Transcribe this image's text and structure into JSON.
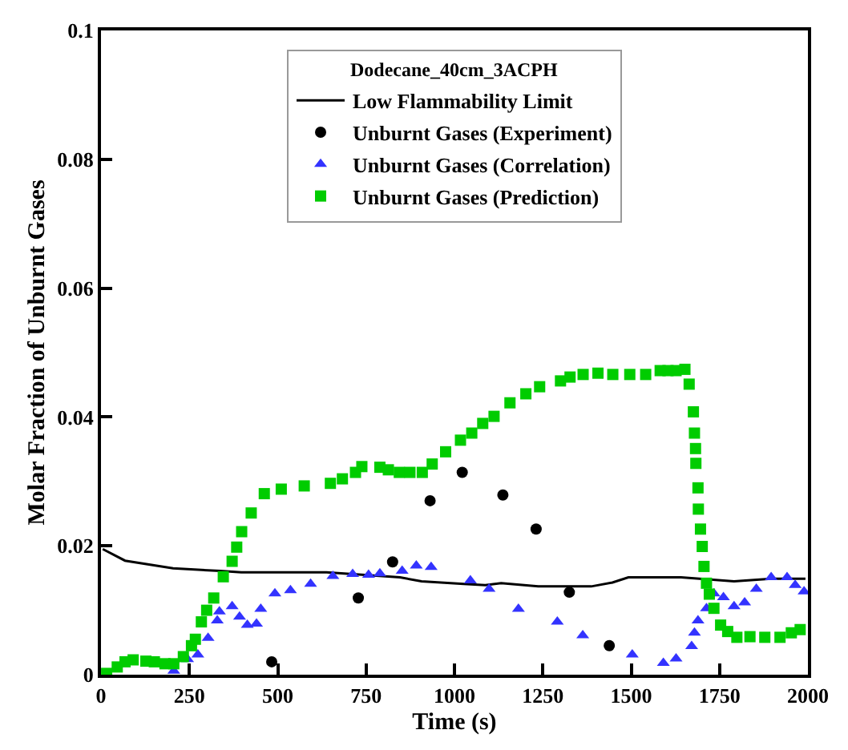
{
  "chart_data": {
    "type": "scatter",
    "xlabel": "Time (s)",
    "ylabel": "Molar Fraction of Unburnt Gases",
    "legend_title": "Dodecane_40cm_3ACPH",
    "xlim": [
      0,
      2000
    ],
    "xticks": [
      0,
      250,
      500,
      750,
      1000,
      1250,
      1500,
      1750,
      2000
    ],
    "ylim": [
      0,
      0.1
    ],
    "yticks": [
      0,
      0.02,
      0.04,
      0.06,
      0.08,
      0.1
    ],
    "grid": false,
    "legend": "top",
    "series": [
      {
        "name": "Low Flammability Limit",
        "type": "line",
        "marker": "none",
        "line_style": "solid",
        "color": "#000000",
        "x": [
          5,
          68,
          204,
          338,
          397,
          638,
          846,
          907,
          1026,
          1087,
          1132,
          1237,
          1387,
          1447,
          1492,
          1641,
          1791,
          1896,
          1993
        ],
        "values": [
          0.0195,
          0.0177,
          0.0165,
          0.0161,
          0.0159,
          0.0159,
          0.0151,
          0.0145,
          0.0141,
          0.0139,
          0.0142,
          0.0137,
          0.0137,
          0.0143,
          0.0151,
          0.0151,
          0.0145,
          0.0149,
          0.0149
        ]
      },
      {
        "name": "Unburnt Gases (Experiment)",
        "marker": "circle",
        "color": "#000000",
        "x": [
          483,
          728,
          825,
          931,
          1022,
          1137,
          1231,
          1325,
          1438
        ],
        "values": [
          0.002,
          0.0119,
          0.0175,
          0.027,
          0.0314,
          0.0279,
          0.0226,
          0.0128,
          0.0045
        ]
      },
      {
        "name": "Unburnt Gases (Correlation)",
        "marker": "triangle",
        "color": "#3333ff",
        "x": [
          206,
          245,
          274,
          303,
          329,
          335,
          371,
          392,
          414,
          440,
          452,
          492,
          536,
          593,
          656,
          712,
          757,
          789,
          852,
          892,
          934,
          1045,
          1098,
          1181,
          1291,
          1363,
          1503,
          1591,
          1627,
          1671,
          1679,
          1689,
          1713,
          1734,
          1761,
          1791,
          1821,
          1854,
          1896,
          1941,
          1964,
          1989
        ],
        "values": [
          0.0006,
          0.0024,
          0.0031,
          0.0057,
          0.0084,
          0.0098,
          0.0106,
          0.009,
          0.0077,
          0.0079,
          0.0102,
          0.0126,
          0.0131,
          0.0141,
          0.0153,
          0.0156,
          0.0155,
          0.0157,
          0.0161,
          0.0169,
          0.0167,
          0.0146,
          0.0133,
          0.0102,
          0.0082,
          0.0061,
          0.0031,
          0.0018,
          0.0025,
          0.0044,
          0.0065,
          0.0084,
          0.0103,
          0.0126,
          0.012,
          0.0106,
          0.0112,
          0.0133,
          0.0151,
          0.0151,
          0.0139,
          0.0129
        ]
      },
      {
        "name": "Unburnt Gases (Prediction)",
        "marker": "square",
        "color": "#00cc00",
        "x": [
          16,
          46,
          68,
          91,
          127,
          151,
          181,
          206,
          233,
          256,
          267,
          284,
          299,
          319,
          346,
          371,
          384,
          398,
          425,
          462,
          510,
          575,
          649,
          683,
          720,
          738,
          789,
          813,
          844,
          874,
          909,
          937,
          975,
          1017,
          1049,
          1080,
          1112,
          1157,
          1202,
          1241,
          1300,
          1327,
          1364,
          1406,
          1448,
          1496,
          1541,
          1582,
          1604,
          1627,
          1652,
          1664,
          1676,
          1679,
          1682,
          1683,
          1689,
          1690,
          1696,
          1701,
          1706,
          1713,
          1721,
          1734,
          1753,
          1773,
          1799,
          1836,
          1878,
          1921,
          1953,
          1978
        ],
        "values": [
          0.0002,
          0.0012,
          0.002,
          0.0023,
          0.0021,
          0.002,
          0.0017,
          0.0017,
          0.0028,
          0.0045,
          0.0055,
          0.0082,
          0.01,
          0.0119,
          0.0152,
          0.0176,
          0.0198,
          0.0222,
          0.0251,
          0.0281,
          0.0288,
          0.0293,
          0.0297,
          0.0304,
          0.0314,
          0.0323,
          0.0322,
          0.0318,
          0.0314,
          0.0314,
          0.0314,
          0.0327,
          0.0346,
          0.0364,
          0.0375,
          0.039,
          0.0401,
          0.0422,
          0.0436,
          0.0447,
          0.0456,
          0.0462,
          0.0466,
          0.0468,
          0.0466,
          0.0466,
          0.0466,
          0.0472,
          0.0472,
          0.0472,
          0.0474,
          0.0451,
          0.0408,
          0.0375,
          0.0351,
          0.0328,
          0.029,
          0.0257,
          0.0226,
          0.0199,
          0.0168,
          0.0142,
          0.0125,
          0.0103,
          0.0077,
          0.0067,
          0.0058,
          0.0059,
          0.0058,
          0.0058,
          0.0065,
          0.007
        ]
      }
    ]
  }
}
